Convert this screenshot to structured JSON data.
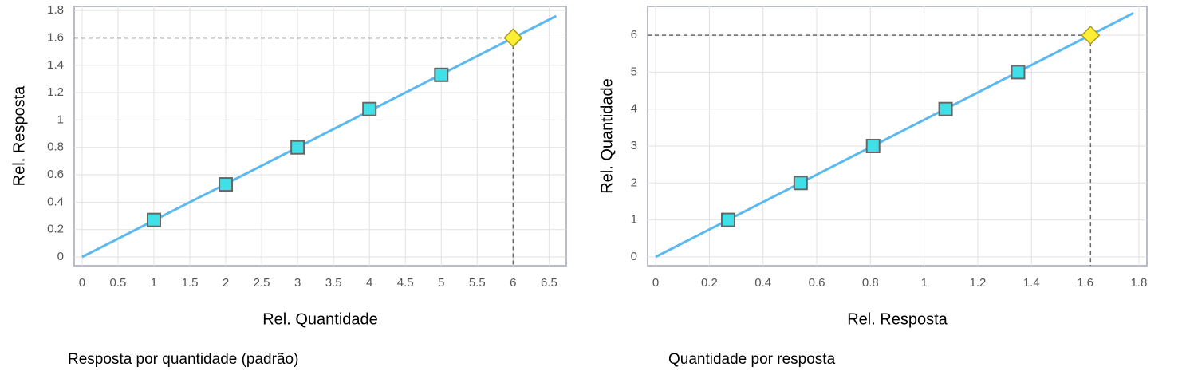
{
  "chart_data": [
    {
      "type": "line",
      "caption": "Resposta por quantidade (padrão)",
      "x_label": "Rel. Quantidade",
      "y_label": "Rel. Resposta",
      "xlim": [
        -0.11,
        6.74
      ],
      "ylim": [
        -0.064,
        1.83
      ],
      "xticks": [
        0,
        0.5,
        1,
        1.5,
        2,
        2.5,
        3,
        3.5,
        4,
        4.5,
        5,
        5.5,
        6,
        6.5
      ],
      "yticks": [
        0,
        0.2,
        0.4,
        0.6,
        0.8,
        1,
        1.2,
        1.4,
        1.6,
        1.8
      ],
      "grid": true,
      "fit": {
        "color": "#5bb8f0",
        "x": [
          0,
          6.6
        ],
        "y": [
          0,
          1.76
        ]
      },
      "points": {
        "color": "#40e0e8",
        "x": [
          1,
          2,
          3,
          4,
          5
        ],
        "y": [
          0.27,
          0.53,
          0.8,
          1.08,
          1.33
        ]
      },
      "highlight": {
        "color": "#ffee33",
        "x": 6,
        "y": 1.6
      }
    },
    {
      "type": "line",
      "caption": "Quantidade por resposta",
      "x_label": "Rel. Resposta",
      "y_label": "Rel. Quantidade",
      "xlim": [
        -0.03,
        1.83
      ],
      "ylim": [
        -0.24,
        6.78
      ],
      "xticks": [
        0,
        0.2,
        0.4,
        0.6,
        0.8,
        1,
        1.2,
        1.4,
        1.6,
        1.8
      ],
      "yticks": [
        0,
        1,
        2,
        3,
        4,
        5,
        6
      ],
      "grid": true,
      "fit": {
        "color": "#5bb8f0",
        "x": [
          0,
          1.78
        ],
        "y": [
          0,
          6.6
        ]
      },
      "points": {
        "color": "#40e0e8",
        "x": [
          0.27,
          0.54,
          0.81,
          1.08,
          1.35
        ],
        "y": [
          1,
          2,
          3,
          4,
          5
        ]
      },
      "highlight": {
        "color": "#ffee33",
        "x": 1.62,
        "y": 6
      }
    }
  ]
}
